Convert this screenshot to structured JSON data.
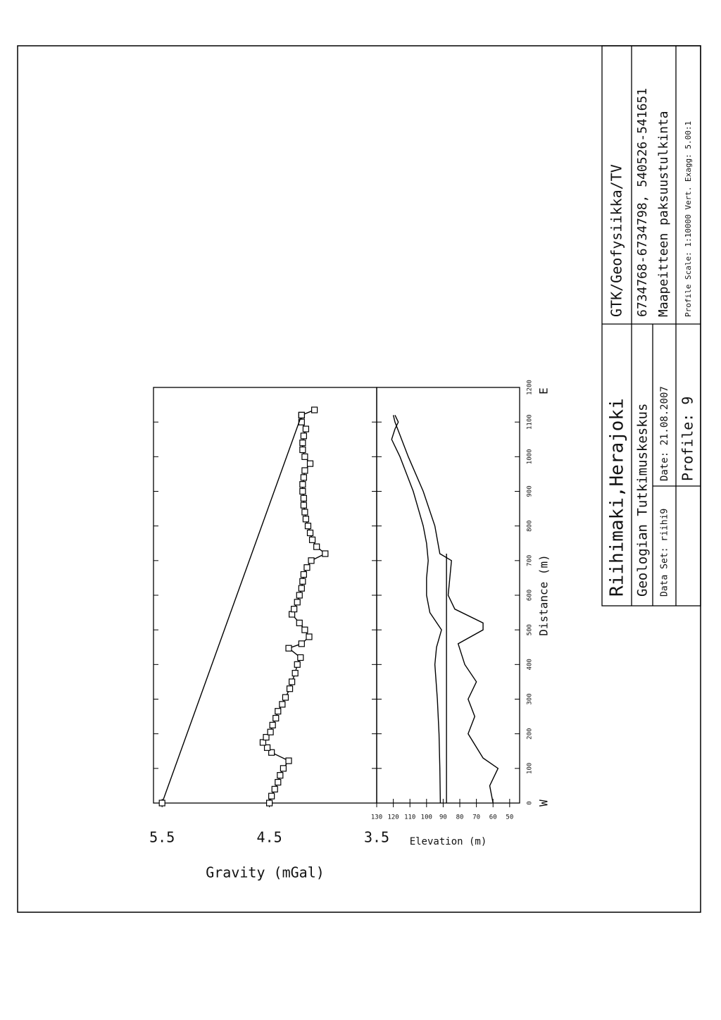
{
  "chart_data": [
    {
      "type": "line",
      "ylabel": "Gravity (mGal)",
      "xlim": [
        0,
        1200
      ],
      "xticks": [
        0,
        100,
        200,
        300,
        400,
        500,
        600,
        700,
        800,
        900,
        1000,
        1100,
        1200
      ],
      "ylim": [
        3.5,
        5.58
      ],
      "yticks": [
        3.5,
        4.5,
        5.5
      ],
      "color": "#000000",
      "series": [
        {
          "markers": true,
          "x": [
            0,
            20,
            40,
            60,
            80,
            100,
            122,
            146,
            160,
            175,
            190,
            205,
            225,
            245,
            265,
            285,
            305,
            330,
            350,
            375,
            400,
            420,
            447,
            460,
            480,
            500,
            520,
            545,
            560,
            580,
            600,
            620,
            640,
            660,
            680,
            700,
            720,
            740,
            760,
            780,
            800,
            820,
            840,
            860,
            880,
            900,
            920,
            940,
            960,
            980,
            1000,
            1020,
            1040,
            1060,
            1080,
            1100,
            1120,
            1135
          ],
          "values": [
            4.5,
            4.48,
            4.45,
            4.42,
            4.4,
            4.37,
            4.32,
            4.48,
            4.52,
            4.56,
            4.53,
            4.49,
            4.47,
            4.44,
            4.42,
            4.38,
            4.35,
            4.31,
            4.29,
            4.26,
            4.24,
            4.21,
            4.32,
            4.2,
            4.13,
            4.17,
            4.22,
            4.29,
            4.27,
            4.24,
            4.22,
            4.2,
            4.19,
            4.18,
            4.15,
            4.11,
            3.98,
            4.06,
            4.1,
            4.12,
            4.14,
            4.16,
            4.17,
            4.18,
            4.18,
            4.19,
            4.19,
            4.18,
            4.17,
            4.12,
            4.17,
            4.19,
            4.19,
            4.18,
            4.16,
            4.2,
            4.2,
            4.08
          ]
        },
        {
          "markers": true,
          "x": [
            0,
            1120
          ],
          "values": [
            5.5,
            4.2
          ]
        }
      ]
    },
    {
      "type": "line",
      "ylabel": "Elevation (m)",
      "xlabel": "Distance (m)",
      "left_end": "W",
      "right_end": "E",
      "xlim": [
        0,
        1200
      ],
      "xticks": [
        0,
        100,
        200,
        300,
        400,
        500,
        600,
        700,
        800,
        900,
        1000,
        1100,
        1200
      ],
      "ylim": [
        44,
        130
      ],
      "yticks": [
        50,
        60,
        70,
        80,
        90,
        100,
        110,
        120,
        130
      ],
      "color": "#000000",
      "series": [
        {
          "markers": false,
          "x": [
            0,
            100,
            200,
            300,
            400,
            450,
            500,
            550,
            600,
            650,
            700,
            750,
            800,
            850,
            900,
            950,
            1000,
            1050,
            1080,
            1100,
            1120
          ],
          "values": [
            91.7,
            92,
            92.5,
            93.5,
            95,
            94,
            91,
            98,
            100,
            100,
            99,
            100,
            102,
            105,
            108,
            112,
            116,
            121,
            119,
            117,
            119
          ]
        },
        {
          "markers": false,
          "x": [
            0,
            50,
            100,
            130,
            200,
            250,
            300,
            350,
            400,
            430,
            460,
            500,
            520,
            560,
            600,
            650,
            700,
            720,
            800,
            900,
            1000,
            1050,
            1100,
            1120
          ],
          "values": [
            60,
            62,
            57,
            66,
            75,
            71,
            75,
            70,
            77,
            79,
            81,
            66,
            66,
            83,
            87,
            86,
            85,
            92,
            95,
            102,
            111,
            115,
            119,
            120
          ]
        },
        {
          "markers": false,
          "x": [
            0,
            720
          ],
          "values": [
            88,
            88
          ]
        }
      ]
    }
  ],
  "title_block": {
    "location": "Riihimaki,Herajoki",
    "organization": "Geologian Tutkimuskeskus",
    "data_set": "Data Set: riihi9",
    "date": "Date: 21.08.2007",
    "profile": "Profile: 9",
    "department": "GTK/Geofysiikka/TV",
    "coordinates": "6734768-6734798, 540526-541651",
    "description": "Maapeitteen paksuustulkinta",
    "scale": "Profile Scale: 1:10000 Vert. Exagg: 5.00:1"
  }
}
